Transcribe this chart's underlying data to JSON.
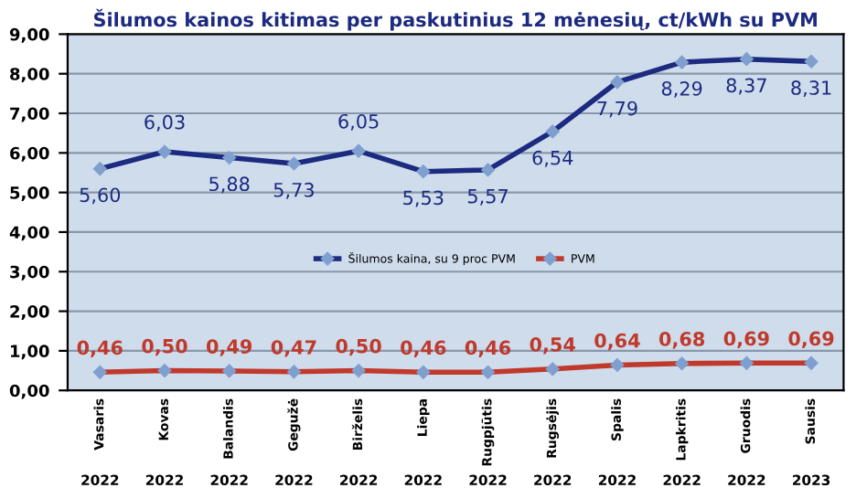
{
  "chart_data": {
    "type": "line",
    "title": "Šilumos kainos kitimas per paskutinius 12 mėnesių, ct/kWh su PVM",
    "categories": [
      "Vasaris\n2022",
      "Kovas\n2022",
      "Balandis\n2022",
      "Gegužė\n2022",
      "Birželis\n2022",
      "Liepa\n2022",
      "Rugpjūtis\n2022",
      "Rugsėjis\n2022",
      "Spalis\n2022",
      "Lapkritis\n2022",
      "Gruodis\n2022",
      "Sausis\n2023"
    ],
    "series": [
      {
        "name": "Šilumos kaina, su 9 proc PVM",
        "color": "#1c2a80",
        "values": [
          5.6,
          6.03,
          5.88,
          5.73,
          6.05,
          5.53,
          5.57,
          6.54,
          7.79,
          8.29,
          8.37,
          8.31
        ],
        "value_labels": [
          "5,60",
          "6,03",
          "5,88",
          "5,73",
          "6,05",
          "5,53",
          "5,57",
          "6,54",
          "7,79",
          "8,29",
          "8,37",
          "8,31"
        ]
      },
      {
        "name": "PVM",
        "color": "#c0392b",
        "values": [
          0.46,
          0.5,
          0.49,
          0.47,
          0.5,
          0.46,
          0.46,
          0.54,
          0.64,
          0.68,
          0.69,
          0.69
        ],
        "value_labels": [
          "0,46",
          "0,50",
          "0,49",
          "0,47",
          "0,50",
          "0,46",
          "0,46",
          "0,54",
          "0,64",
          "0,68",
          "0,69",
          "0,69"
        ]
      }
    ],
    "ylim": [
      0,
      9
    ],
    "yticks": [
      {
        "value": 0,
        "label": "0,00"
      },
      {
        "value": 1,
        "label": "1,00"
      },
      {
        "value": 2,
        "label": "2,00"
      },
      {
        "value": 3,
        "label": "3,00"
      },
      {
        "value": 4,
        "label": "4,00"
      },
      {
        "value": 5,
        "label": "5,00"
      },
      {
        "value": 6,
        "label": "6,00"
      },
      {
        "value": 7,
        "label": "7,00"
      },
      {
        "value": 8,
        "label": "8,00"
      },
      {
        "value": 9,
        "label": "9,00"
      }
    ],
    "grid": "y",
    "legend": "center",
    "marker": "diamond",
    "line_style": "solid"
  }
}
